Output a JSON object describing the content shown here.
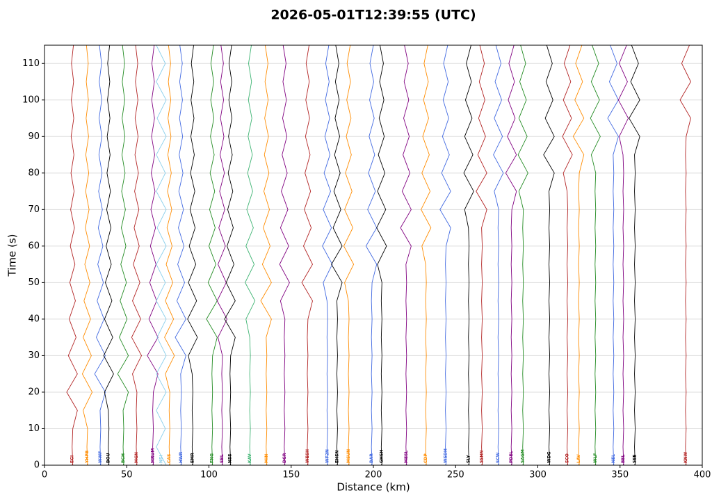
{
  "chart_data": {
    "type": "record_section",
    "title": "2026-05-01T12:39:55 (UTC)",
    "x_label": "Distance (km)",
    "y_label": "Time (s)",
    "xlim": [
      0,
      400
    ],
    "ylim": [
      0,
      115
    ],
    "xticks": [
      0,
      50,
      100,
      150,
      200,
      250,
      300,
      350,
      400
    ],
    "yticks": [
      0,
      10,
      20,
      30,
      40,
      50,
      60,
      70,
      80,
      90,
      100,
      110
    ],
    "grid": true,
    "t": [
      0,
      5,
      10,
      15,
      20,
      25,
      30,
      35,
      40,
      45,
      50,
      55,
      60,
      65,
      70,
      75,
      80,
      85,
      90,
      95,
      100,
      105,
      110,
      115
    ],
    "series": [
      {
        "name": "EGI",
        "color": "#b22222",
        "distance": 17,
        "values": [
          0.2,
          -0.2,
          0.2,
          3,
          -3.5,
          3,
          -2.5,
          2.2,
          -2,
          1.8,
          -1.6,
          1.5,
          -1.3,
          1.2,
          -1.1,
          1,
          -0.9,
          0.9,
          -0.8,
          0.8,
          -0.7,
          0.7,
          -0.6,
          0.6
        ]
      },
      {
        "name": "YHPB",
        "color": "#ff8c00",
        "distance": 26,
        "values": [
          0.2,
          -0.2,
          0.2,
          -2.5,
          3,
          -3,
          2.5,
          -2.5,
          2,
          -2,
          1.6,
          -1.5,
          1.4,
          -1.2,
          1.1,
          -1,
          0.9,
          -0.9,
          0.8,
          -0.7,
          0.7,
          -0.6,
          0.6,
          -0.5
        ]
      },
      {
        "name": "WWF",
        "color": "#4169e1",
        "distance": 34,
        "values": [
          0.2,
          -0.2,
          0.2,
          -0.2,
          3,
          -3.5,
          3,
          -2.5,
          2.2,
          -2,
          1.8,
          -1.6,
          1.5,
          -1.3,
          1.2,
          -1.1,
          1,
          -0.9,
          0.9,
          -0.8,
          0.8,
          -0.7,
          0.7,
          -0.6
        ]
      },
      {
        "name": "BOU",
        "color": "#000000",
        "distance": 39,
        "values": [
          0.2,
          -0.2,
          0.2,
          -0.2,
          -2.5,
          3,
          -3,
          2.5,
          -2.5,
          2,
          -2,
          1.6,
          -1.5,
          1.4,
          -1.2,
          1.1,
          -1,
          0.9,
          -0.9,
          0.8,
          -0.7,
          0.7,
          -0.6,
          0.6
        ]
      },
      {
        "name": "BCH",
        "color": "#228b22",
        "distance": 48,
        "values": [
          0.2,
          -0.2,
          0.2,
          -0.2,
          3,
          -3.5,
          3,
          -2.5,
          2.2,
          -2,
          1.8,
          -1.6,
          1.5,
          -1.3,
          1.2,
          -1.1,
          1,
          -0.9,
          0.9,
          -0.8,
          0.8,
          -0.7,
          0.7,
          -0.6
        ]
      },
      {
        "name": "MGN",
        "color": "#b22222",
        "distance": 56,
        "values": [
          0.2,
          -0.2,
          0.2,
          -0.2,
          0.2,
          -2.5,
          3,
          -3,
          2.5,
          -2.5,
          2,
          -2,
          1.6,
          -1.5,
          1.4,
          -1.2,
          1.1,
          -1,
          0.9,
          -0.9,
          0.8,
          -0.7,
          0.7,
          -0.6
        ]
      },
      {
        "name": "MRUM",
        "color": "#800080",
        "distance": 66,
        "values": [
          0.2,
          -0.2,
          0.2,
          -0.2,
          0.2,
          3,
          -3.5,
          3,
          -2.5,
          2.2,
          -2,
          1.8,
          -1.6,
          1.5,
          -1.3,
          1.2,
          -1.1,
          1,
          -0.9,
          0.9,
          -0.8,
          0.8,
          -0.7,
          0.7
        ]
      },
      {
        "name": "NSI",
        "color": "#87ceeb",
        "distance": 71,
        "values": [
          3,
          -3,
          2.5,
          -3,
          3,
          -3,
          3,
          -2.5,
          3,
          -3,
          2.5,
          -3,
          3,
          -2.5,
          3,
          -3,
          2.5,
          -3,
          3,
          -2.5,
          3,
          -3,
          2.5,
          -3
        ]
      },
      {
        "name": "CAS",
        "color": "#ff8c00",
        "distance": 76,
        "values": [
          0.2,
          -0.2,
          0.2,
          -0.2,
          0.2,
          -2.5,
          3,
          -3,
          2.5,
          -2.5,
          2,
          -2,
          1.6,
          -1.5,
          1.4,
          -1.2,
          1.1,
          -1,
          0.9,
          -0.9,
          0.8,
          -0.7,
          0.7,
          -0.6
        ]
      },
      {
        "name": "HWR",
        "color": "#4169e1",
        "distance": 83,
        "values": [
          0.2,
          -0.2,
          0.2,
          -0.2,
          0.2,
          -0.2,
          3,
          -3.5,
          3,
          -2.5,
          2.2,
          -2,
          1.8,
          -1.6,
          1.5,
          -1.3,
          1.2,
          -1.1,
          1,
          -0.9,
          0.9,
          -0.8,
          0.8,
          -0.7
        ]
      },
      {
        "name": "EMR",
        "color": "#000000",
        "distance": 90,
        "values": [
          0.2,
          -0.2,
          0.2,
          -0.2,
          0.2,
          -0.2,
          -2.5,
          3,
          -3,
          2.5,
          -2.5,
          2,
          -2,
          1.6,
          -1.5,
          1.4,
          -1.2,
          1.1,
          -1,
          0.9,
          -0.9,
          0.8,
          -0.7,
          0.7
        ]
      },
      {
        "name": "FNG",
        "color": "#228b22",
        "distance": 102,
        "values": [
          0.2,
          -0.2,
          0.2,
          -0.2,
          0.2,
          -0.2,
          0.2,
          3,
          -3.5,
          3,
          -2.5,
          2.2,
          -2,
          1.8,
          -1.6,
          1.5,
          -1.3,
          1.2,
          -1.1,
          1,
          -0.9,
          0.9,
          -0.8,
          0.8
        ]
      },
      {
        "name": "SBL",
        "color": "#800080",
        "distance": 108,
        "values": [
          0.2,
          -0.2,
          0.2,
          -0.2,
          0.2,
          -0.2,
          0.2,
          -2.5,
          3,
          -3,
          2.5,
          -2.5,
          2,
          -2,
          1.6,
          -1.5,
          1.4,
          -1.2,
          1.1,
          -1,
          0.9,
          -0.9,
          0.8,
          -0.7
        ]
      },
      {
        "name": "NSS",
        "color": "#000000",
        "distance": 113,
        "values": [
          0.2,
          -0.2,
          0.2,
          -0.2,
          0.2,
          -0.2,
          0.2,
          3,
          -3.5,
          3,
          -2.5,
          2.2,
          -2,
          1.8,
          -1.6,
          1.5,
          -1.3,
          1.2,
          -1.1,
          1,
          -0.9,
          0.9,
          -0.8,
          0.8
        ]
      },
      {
        "name": "KAV",
        "color": "#3cb371",
        "distance": 125,
        "values": [
          0.2,
          -0.2,
          0.2,
          -0.2,
          0.2,
          -0.2,
          0.2,
          -0.2,
          -2.5,
          3,
          -3,
          2.5,
          -2.5,
          2,
          -2,
          1.6,
          -1.5,
          1.4,
          -1.2,
          1.1,
          -1,
          0.9,
          -0.9,
          0.8
        ]
      },
      {
        "name": "MIN",
        "color": "#ff8c00",
        "distance": 135,
        "values": [
          0.2,
          -0.2,
          0.2,
          -0.2,
          0.2,
          -0.2,
          0.2,
          -0.2,
          3,
          -3.5,
          3,
          -2.5,
          2.2,
          -2,
          1.8,
          -1.6,
          1.5,
          -1.3,
          1.2,
          -1.1,
          1,
          -0.9,
          0.9,
          -0.8
        ]
      },
      {
        "name": "DGR",
        "color": "#800080",
        "distance": 146,
        "values": [
          0.2,
          -0.2,
          0.2,
          -0.2,
          0.2,
          -0.2,
          0.2,
          -0.2,
          0.2,
          -2.5,
          3,
          -3,
          2.5,
          -2.5,
          2,
          -2,
          1.6,
          -1.5,
          1.4,
          -1.2,
          1.1,
          -1,
          0.9,
          -0.9
        ]
      },
      {
        "name": "WESH",
        "color": "#b22222",
        "distance": 160,
        "values": [
          0.2,
          -0.2,
          0.2,
          -0.2,
          0.2,
          -0.2,
          0.2,
          -0.2,
          0.2,
          3,
          -3.5,
          3,
          -2.5,
          2.2,
          -2,
          1.8,
          -1.6,
          1.5,
          -1.3,
          1.2,
          -1.1,
          1,
          -0.9,
          0.9
        ]
      },
      {
        "name": "WF2N",
        "color": "#4169e1",
        "distance": 172,
        "values": [
          0.2,
          -0.2,
          0.2,
          -0.2,
          0.2,
          -0.2,
          0.2,
          -0.2,
          0.2,
          -0.2,
          -2.5,
          3,
          -3,
          2.5,
          -2.5,
          2,
          -2,
          1.6,
          -1.5,
          1.4,
          -1.2,
          1.1,
          -1,
          0.9
        ]
      },
      {
        "name": "EHSN",
        "color": "#000000",
        "distance": 178,
        "values": [
          0.2,
          -0.2,
          0.2,
          -0.2,
          0.2,
          -0.2,
          0.2,
          -0.2,
          0.2,
          -0.2,
          3,
          -3.5,
          3,
          -2.5,
          2.2,
          -2,
          1.8,
          -1.6,
          1.5,
          -1.3,
          1.2,
          -1.1,
          1,
          -0.9
        ]
      },
      {
        "name": "MSUN",
        "color": "#ff8c00",
        "distance": 185,
        "values": [
          0.2,
          -0.2,
          0.2,
          -0.2,
          0.2,
          -0.2,
          0.2,
          -0.2,
          0.2,
          -0.2,
          -2.5,
          3,
          -3,
          2.5,
          -2.5,
          2,
          -2,
          1.6,
          -1.5,
          1.4,
          -1.2,
          1.1,
          -1,
          0.9
        ]
      },
      {
        "name": "BAR",
        "color": "#4169e1",
        "distance": 199,
        "values": [
          0.2,
          -0.2,
          0.2,
          -0.2,
          0.2,
          -0.2,
          0.2,
          -0.2,
          0.2,
          -0.2,
          0.2,
          3,
          -3.5,
          3,
          -2.5,
          2.2,
          -2,
          1.8,
          -1.6,
          1.5,
          -1.3,
          1.2,
          -1.1,
          1
        ]
      },
      {
        "name": "GHSH",
        "color": "#000000",
        "distance": 205,
        "values": [
          0.2,
          -0.2,
          0.2,
          -0.2,
          0.2,
          -0.2,
          0.2,
          -0.2,
          0.2,
          -0.2,
          0.2,
          -2.5,
          3,
          -3,
          2.5,
          -2.5,
          2,
          -2,
          1.6,
          -1.5,
          1.4,
          -1.2,
          1.1,
          -1
        ]
      },
      {
        "name": "MESL",
        "color": "#800080",
        "distance": 220,
        "values": [
          0.2,
          -0.2,
          0.2,
          -0.2,
          0.2,
          -0.2,
          0.2,
          -0.2,
          0.2,
          -0.2,
          0.2,
          -0.2,
          3,
          -3.5,
          3,
          -2.5,
          2.2,
          -2,
          1.8,
          -1.6,
          1.5,
          -1.3,
          1.2,
          -1.1
        ]
      },
      {
        "name": "CDP",
        "color": "#ff8c00",
        "distance": 232,
        "values": [
          0.2,
          -0.2,
          0.2,
          -0.2,
          0.2,
          -0.2,
          0.2,
          -0.2,
          0.2,
          -0.2,
          0.2,
          -0.2,
          -2.5,
          3,
          -3,
          2.5,
          -2.5,
          2,
          -2,
          1.6,
          -1.5,
          1.4,
          -1.2,
          1.1
        ]
      },
      {
        "name": "WSDH",
        "color": "#4169e1",
        "distance": 244,
        "values": [
          0.2,
          -0.2,
          0.2,
          -0.2,
          0.2,
          -0.2,
          0.2,
          -0.2,
          0.2,
          -0.2,
          0.2,
          -0.2,
          0.2,
          3,
          -3.5,
          3,
          -2.5,
          2.2,
          -2,
          1.8,
          -1.6,
          1.5,
          -1.3,
          1.2
        ]
      },
      {
        "name": "SLY",
        "color": "#000000",
        "distance": 258,
        "values": [
          0.2,
          -0.2,
          0.2,
          -0.2,
          0.2,
          -0.2,
          0.2,
          -0.2,
          0.2,
          -0.2,
          0.2,
          -0.2,
          0.2,
          -0.2,
          -2.5,
          3,
          -3,
          2.5,
          -2.5,
          2,
          -2,
          1.6,
          -1.5,
          1.4
        ]
      },
      {
        "name": "SSHN",
        "color": "#b22222",
        "distance": 266,
        "values": [
          0.2,
          -0.2,
          0.2,
          -0.2,
          0.2,
          -0.2,
          0.2,
          -0.2,
          0.2,
          -0.2,
          0.2,
          -0.2,
          0.2,
          -0.2,
          3,
          -3.5,
          3,
          -2.5,
          2.2,
          -2,
          1.8,
          -1.6,
          1.5,
          -1.3
        ]
      },
      {
        "name": "SCW",
        "color": "#4169e1",
        "distance": 276,
        "values": [
          0.2,
          -0.2,
          0.2,
          -0.2,
          0.2,
          -0.2,
          0.2,
          -0.2,
          0.2,
          -0.2,
          0.2,
          -0.2,
          0.2,
          -0.2,
          0.2,
          -2.5,
          3,
          -3,
          2.5,
          -2.5,
          2,
          -2,
          1.6,
          -1.5
        ]
      },
      {
        "name": "PDEL",
        "color": "#800080",
        "distance": 284,
        "values": [
          0.2,
          -0.2,
          0.2,
          -0.2,
          0.2,
          -0.2,
          0.2,
          -0.2,
          0.2,
          -0.2,
          0.2,
          -0.2,
          0.2,
          -0.2,
          0.2,
          3,
          -3.5,
          3,
          -2.5,
          2.2,
          -2,
          1.8,
          -1.6,
          1.5
        ]
      },
      {
        "name": "SAGM",
        "color": "#228b22",
        "distance": 291,
        "values": [
          0.2,
          -0.2,
          0.2,
          -0.2,
          0.2,
          -0.2,
          0.2,
          -0.2,
          0.2,
          -0.2,
          0.2,
          -0.2,
          0.2,
          -0.2,
          0.2,
          -2.5,
          3,
          -3,
          2.5,
          -2.5,
          2,
          -2,
          1.6,
          -1.5
        ]
      },
      {
        "name": "WDG",
        "color": "#000000",
        "distance": 307,
        "values": [
          0.2,
          -0.2,
          0.2,
          -0.2,
          0.2,
          -0.2,
          0.2,
          -0.2,
          0.2,
          -0.2,
          0.2,
          -0.2,
          0.2,
          -0.2,
          0.2,
          -0.2,
          3,
          -3.5,
          3,
          -2.5,
          2.2,
          -2,
          1.8,
          -1.6
        ]
      },
      {
        "name": "SCO",
        "color": "#b22222",
        "distance": 318,
        "values": [
          0.2,
          -0.2,
          0.2,
          -0.2,
          0.2,
          -0.2,
          0.2,
          -0.2,
          0.2,
          -0.2,
          0.2,
          -0.2,
          0.2,
          -0.2,
          0.2,
          -0.2,
          -2.5,
          3,
          -3,
          2.5,
          -2.5,
          2,
          -2,
          1.6
        ]
      },
      {
        "name": "LAV",
        "color": "#ff8c00",
        "distance": 325,
        "values": [
          0.2,
          -0.2,
          0.2,
          -0.2,
          0.2,
          -0.2,
          0.2,
          -0.2,
          0.2,
          -0.2,
          0.2,
          -0.2,
          0.2,
          -0.2,
          0.2,
          -0.2,
          0.2,
          3,
          -3.5,
          3,
          -2.5,
          2.2,
          -2,
          1.8
        ]
      },
      {
        "name": "WLF",
        "color": "#228b22",
        "distance": 335,
        "values": [
          0.2,
          -0.2,
          0.2,
          -0.2,
          0.2,
          -0.2,
          0.2,
          -0.2,
          0.2,
          -0.2,
          0.2,
          -0.2,
          0.2,
          -0.2,
          0.2,
          -0.2,
          0.2,
          -2.5,
          3,
          -3,
          2.5,
          -2.5,
          2,
          -2
        ]
      },
      {
        "name": "NEL",
        "color": "#4169e1",
        "distance": 346,
        "values": [
          0.2,
          -0.2,
          0.2,
          -0.2,
          0.2,
          -0.2,
          0.2,
          -0.2,
          0.2,
          -0.2,
          0.2,
          -0.2,
          0.2,
          -0.2,
          0.2,
          -0.2,
          0.2,
          -0.2,
          3,
          -3.5,
          3,
          -2.5,
          2.2,
          -2
        ]
      },
      {
        "name": "BEL",
        "color": "#800080",
        "distance": 352,
        "values": [
          0.2,
          -0.2,
          0.2,
          -0.2,
          0.2,
          -0.2,
          0.2,
          -0.2,
          0.2,
          -0.2,
          0.2,
          -0.2,
          0.2,
          -0.2,
          0.2,
          -0.2,
          0.2,
          -0.2,
          -2.5,
          3,
          -3,
          2.5,
          -2.5,
          2
        ]
      },
      {
        "name": "SEE",
        "color": "#000000",
        "distance": 359,
        "values": [
          0.2,
          -0.2,
          0.2,
          -0.2,
          0.2,
          -0.2,
          0.2,
          -0.2,
          0.2,
          -0.2,
          0.2,
          -0.2,
          0.2,
          -0.2,
          0.2,
          -0.2,
          0.2,
          -0.2,
          3,
          -3.5,
          3,
          -2.5,
          2.2,
          -2
        ]
      },
      {
        "name": "KNW",
        "color": "#b22222",
        "distance": 390,
        "values": [
          0.2,
          -0.2,
          0.2,
          -0.2,
          0.2,
          -0.2,
          0.2,
          -0.2,
          0.2,
          -0.2,
          0.2,
          -0.2,
          0.2,
          -0.2,
          0.2,
          -0.2,
          0.2,
          -0.2,
          0.2,
          3,
          -3.5,
          3,
          -2.5,
          2.2
        ]
      }
    ]
  }
}
